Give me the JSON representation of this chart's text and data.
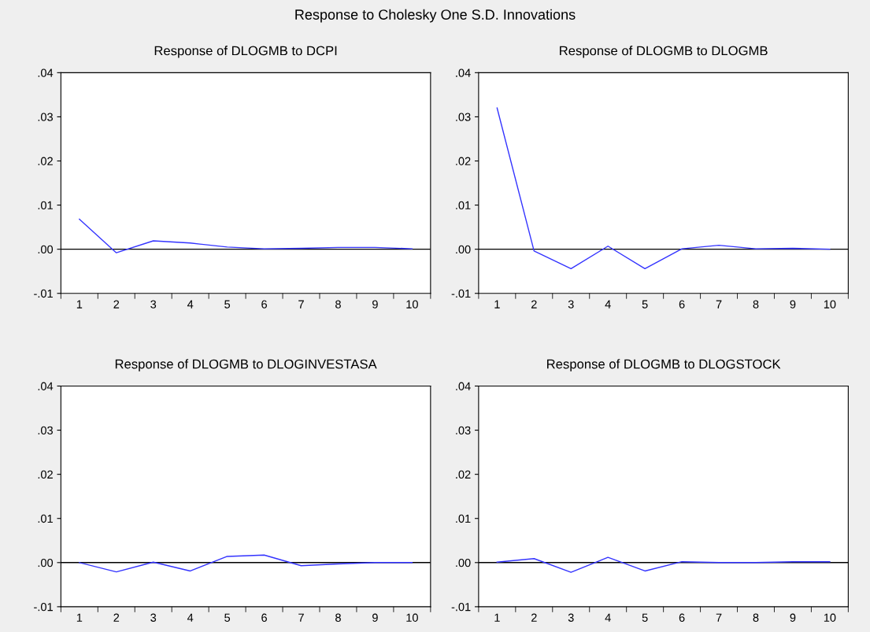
{
  "chart_data": [
    {
      "type": "line",
      "title": "Response of DLOGMB to DCPI",
      "annotations": [
        "Response to Cholesky One S.D. Innovations"
      ],
      "categories": [
        "1",
        "2",
        "3",
        "4",
        "5",
        "6",
        "7",
        "8",
        "9",
        "10"
      ],
      "series": [
        {
          "color": "#3333ff",
          "values": [
            0.0068,
            -0.0008,
            0.0019,
            0.0014,
            0.0005,
            0.0001,
            0.0002,
            0.0004,
            0.0004,
            0.0001
          ]
        }
      ],
      "ylim": [
        -0.01,
        0.04
      ],
      "yticks": [
        {
          "value": -0.01,
          "label": "-.01"
        },
        {
          "value": 0,
          "label": ".00"
        },
        {
          "value": 0.01,
          "label": ".01"
        },
        {
          "value": 0.02,
          "label": ".02"
        },
        {
          "value": 0.03,
          "label": ".03"
        },
        {
          "value": 0.04,
          "label": ".04"
        }
      ],
      "ref_lines": [
        {
          "axis": "y",
          "value": 0,
          "color": "#000000"
        }
      ],
      "grid": false,
      "legend": false,
      "marker": "none",
      "line_style": "solid"
    },
    {
      "type": "line",
      "title": "Response of DLOGMB to DLOGMB",
      "categories": [
        "1",
        "2",
        "3",
        "4",
        "5",
        "6",
        "7",
        "8",
        "9",
        "10"
      ],
      "series": [
        {
          "color": "#3333ff",
          "values": [
            0.032,
            -0.0004,
            -0.0044,
            0.0007,
            -0.0044,
            0.0001,
            0.0009,
            0.0001,
            0.0002,
            0.0
          ]
        }
      ],
      "ylim": [
        -0.01,
        0.04
      ],
      "yticks": [
        {
          "value": -0.01,
          "label": "-.01"
        },
        {
          "value": 0,
          "label": ".00"
        },
        {
          "value": 0.01,
          "label": ".01"
        },
        {
          "value": 0.02,
          "label": ".02"
        },
        {
          "value": 0.03,
          "label": ".03"
        },
        {
          "value": 0.04,
          "label": ".04"
        }
      ],
      "ref_lines": [
        {
          "axis": "y",
          "value": 0,
          "color": "#000000"
        }
      ],
      "grid": false,
      "legend": false,
      "marker": "none",
      "line_style": "solid"
    },
    {
      "type": "line",
      "title": "Response of DLOGMB to DLOGINVESTASA",
      "categories": [
        "1",
        "2",
        "3",
        "4",
        "5",
        "6",
        "7",
        "8",
        "9",
        "10"
      ],
      "series": [
        {
          "color": "#3333ff",
          "values": [
            0.0,
            -0.0021,
            0.0001,
            -0.0019,
            0.0014,
            0.0017,
            -0.0007,
            -0.0003,
            0.0,
            0.0
          ]
        }
      ],
      "ylim": [
        -0.01,
        0.04
      ],
      "yticks": [
        {
          "value": -0.01,
          "label": "-.01"
        },
        {
          "value": 0,
          "label": ".00"
        },
        {
          "value": 0.01,
          "label": ".01"
        },
        {
          "value": 0.02,
          "label": ".02"
        },
        {
          "value": 0.03,
          "label": ".03"
        },
        {
          "value": 0.04,
          "label": ".04"
        }
      ],
      "ref_lines": [
        {
          "axis": "y",
          "value": 0,
          "color": "#000000"
        }
      ],
      "grid": false,
      "legend": false,
      "marker": "none",
      "line_style": "solid"
    },
    {
      "type": "line",
      "title": "Response of DLOGMB to DLOGSTOCK",
      "categories": [
        "1",
        "2",
        "3",
        "4",
        "5",
        "6",
        "7",
        "8",
        "9",
        "10"
      ],
      "series": [
        {
          "color": "#3333ff",
          "values": [
            0.0001,
            0.0009,
            -0.0022,
            0.0012,
            -0.0019,
            0.0002,
            0.0,
            0.0,
            0.0002,
            0.0002
          ]
        }
      ],
      "ylim": [
        -0.01,
        0.04
      ],
      "yticks": [
        {
          "value": -0.01,
          "label": "-.01"
        },
        {
          "value": 0,
          "label": ".00"
        },
        {
          "value": 0.01,
          "label": ".01"
        },
        {
          "value": 0.02,
          "label": ".02"
        },
        {
          "value": 0.03,
          "label": ".03"
        },
        {
          "value": 0.04,
          "label": ".04"
        }
      ],
      "ref_lines": [
        {
          "axis": "y",
          "value": 0,
          "color": "#000000"
        }
      ],
      "grid": false,
      "legend": false,
      "marker": "none",
      "line_style": "solid"
    }
  ]
}
